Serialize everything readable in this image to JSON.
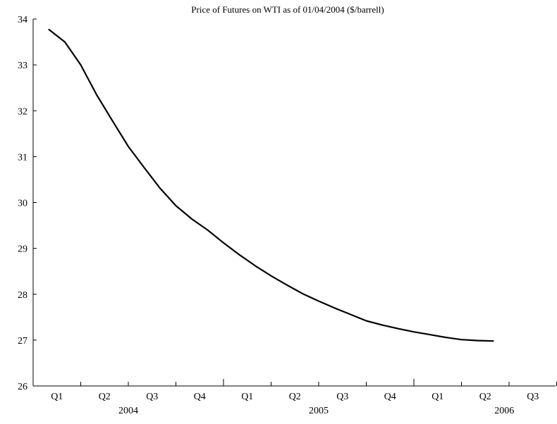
{
  "chart_data": {
    "type": "line",
    "title": "Price of Futures on WTI as of 01/04/2004 ($/barrell)",
    "xlabel": "",
    "ylabel": "",
    "ylim": [
      26,
      34
    ],
    "yticks": [
      26,
      27,
      28,
      29,
      30,
      31,
      32,
      33,
      34
    ],
    "grid": false,
    "legend": "none",
    "quarter_labels": [
      "Q1",
      "Q2",
      "Q3",
      "Q4",
      "Q1",
      "Q2",
      "Q3",
      "Q4",
      "Q1",
      "Q2",
      "Q3"
    ],
    "year_labels": [
      "2004",
      "2005",
      "2006"
    ],
    "series": [
      {
        "color": "#000000",
        "x": [
          "2004-02",
          "2004-03",
          "2004-04",
          "2004-05",
          "2004-06",
          "2004-07",
          "2004-08",
          "2004-09",
          "2004-10",
          "2004-11",
          "2004-12",
          "2005-01",
          "2005-02",
          "2005-03",
          "2005-04",
          "2005-05",
          "2005-06",
          "2005-07",
          "2005-08",
          "2005-09",
          "2005-10",
          "2005-11",
          "2005-12",
          "2006-01",
          "2006-02",
          "2006-03",
          "2006-04",
          "2006-05",
          "2006-06"
        ],
        "values": [
          33.77,
          33.5,
          33.0,
          32.35,
          31.78,
          31.22,
          30.76,
          30.31,
          29.93,
          29.64,
          29.4,
          29.12,
          28.86,
          28.62,
          28.4,
          28.2,
          28.01,
          27.85,
          27.7,
          27.56,
          27.42,
          27.33,
          27.25,
          27.18,
          27.12,
          27.06,
          27.01,
          26.99,
          26.98
        ]
      }
    ]
  }
}
